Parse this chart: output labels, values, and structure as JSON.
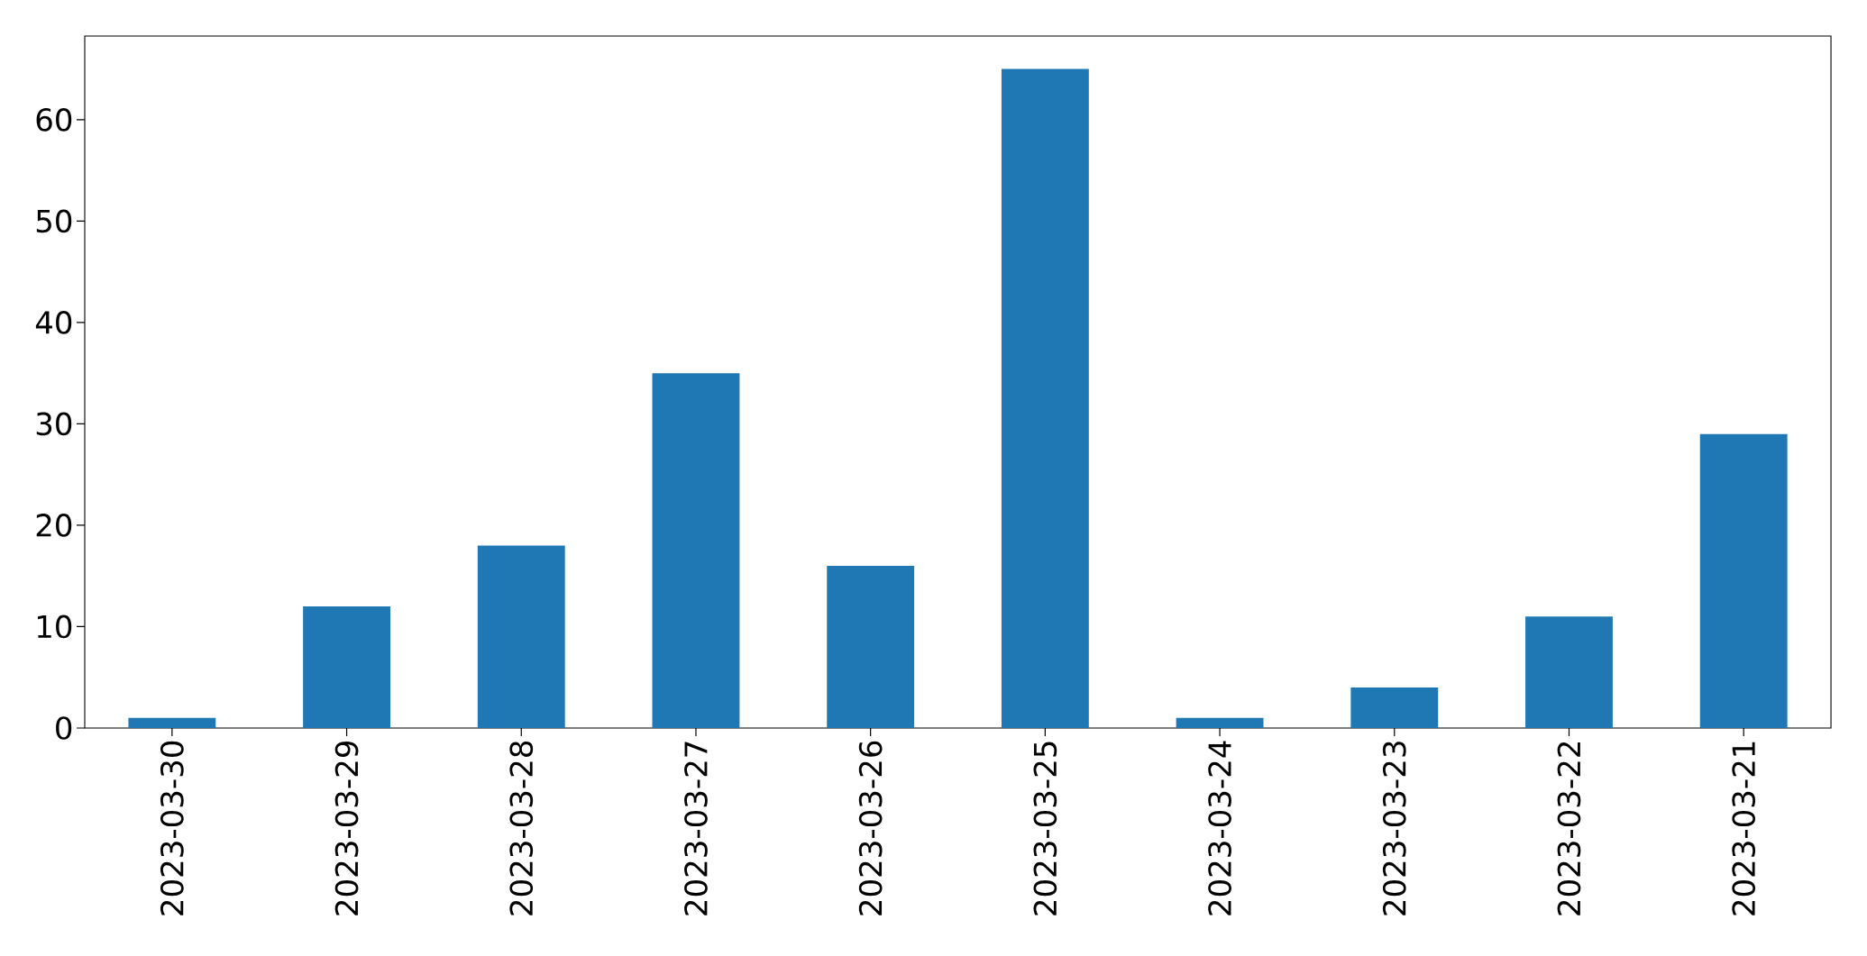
{
  "chart_data": {
    "type": "bar",
    "categories": [
      "2023-03-30",
      "2023-03-29",
      "2023-03-28",
      "2023-03-27",
      "2023-03-26",
      "2023-03-25",
      "2023-03-24",
      "2023-03-23",
      "2023-03-22",
      "2023-03-21"
    ],
    "values": [
      1,
      12,
      18,
      35,
      16,
      65,
      1,
      4,
      11,
      29
    ],
    "color": "#1f77b4",
    "ylim": [
      0,
      68.25
    ],
    "yticks": [
      0,
      10,
      20,
      30,
      40,
      50,
      60
    ]
  }
}
